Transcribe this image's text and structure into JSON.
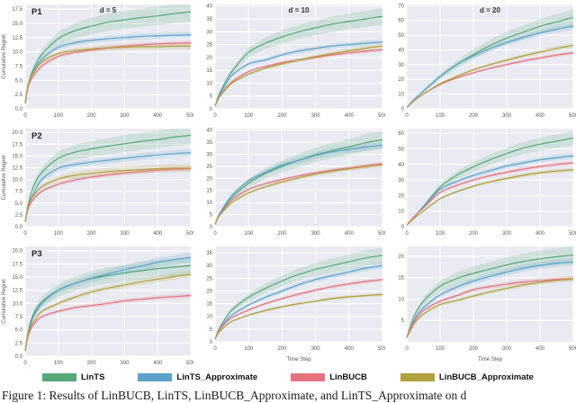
{
  "figure": {
    "caption": "Figure 1: Results of LinBUCB, LinTS, LinBUCB_Approximate, and LinTS_Approximate on d"
  },
  "style_colors": {
    "plot_background": "#eaebf2",
    "gridline": "#ffffff",
    "tick_text": "#555555",
    "title_text": "#333333"
  },
  "legend": {
    "items": [
      {
        "name": "lints",
        "label": "LinTS",
        "color": "#55a878"
      },
      {
        "name": "lints-approximate",
        "label": "LinTS_Approximate",
        "color": "#5ba2c9"
      },
      {
        "name": "linbucb",
        "label": "LinBUCB",
        "color": "#e5737f"
      },
      {
        "name": "linbucb-approximate",
        "label": "LinBUCB_Approximate",
        "color": "#b0a03e"
      }
    ]
  },
  "chart_data": [
    {
      "id": "p1-d5",
      "type": "line",
      "panel_label": "P1",
      "title": "d = 5",
      "ylabel": "Cumulative Regret",
      "x": [
        0,
        10,
        25,
        50,
        100,
        150,
        200,
        250,
        300,
        350,
        400,
        450,
        500
      ],
      "xticks": [
        0,
        100,
        200,
        300,
        400,
        500
      ],
      "xlim": [
        0,
        500
      ],
      "yticks": [
        0,
        2.5,
        5,
        7.5,
        10,
        12.5,
        15,
        17.5
      ],
      "ytick_decimals": 1,
      "ylim": [
        0,
        18.3
      ],
      "series": [
        {
          "name": "LinTS",
          "band_frac": 0.1,
          "values": [
            1,
            4.5,
            7,
            9.5,
            12.3,
            13.7,
            14.5,
            15.2,
            15.6,
            16,
            16.3,
            16.7,
            17
          ]
        },
        {
          "name": "LinTS_Approximate",
          "band_frac": 0.04,
          "values": [
            1,
            4.3,
            6.5,
            8.7,
            10.8,
            11.6,
            12,
            12.3,
            12.5,
            12.7,
            12.8,
            12.9,
            13
          ]
        },
        {
          "name": "LinBUCB",
          "band_frac": 0.035,
          "values": [
            1,
            4,
            5.8,
            7.5,
            9.2,
            9.9,
            10.3,
            10.7,
            11,
            11.2,
            11.4,
            11.5,
            11.6
          ]
        },
        {
          "name": "LinBUCB_Approximate",
          "band_frac": 0.045,
          "values": [
            1,
            4.4,
            6.3,
            8.2,
            9.7,
            10.2,
            10.5,
            10.7,
            10.8,
            10.9,
            10.9,
            11,
            11
          ]
        }
      ]
    },
    {
      "id": "p1-d10",
      "type": "line",
      "title": "d = 10",
      "x": [
        0,
        10,
        25,
        50,
        100,
        150,
        200,
        250,
        300,
        350,
        400,
        450,
        500
      ],
      "xticks": [
        0,
        100,
        200,
        300,
        400,
        500
      ],
      "xlim": [
        0,
        500
      ],
      "yticks": [
        0,
        5,
        10,
        15,
        20,
        25,
        30,
        35,
        40
      ],
      "ytick_decimals": 0,
      "ylim": [
        0,
        40.6
      ],
      "series": [
        {
          "name": "LinTS",
          "band_frac": 0.09,
          "values": [
            1,
            5,
            9,
            14.5,
            22,
            25.5,
            28,
            30,
            31.5,
            33,
            34,
            35,
            36
          ]
        },
        {
          "name": "LinTS_Approximate",
          "band_frac": 0.04,
          "values": [
            1,
            4.5,
            8,
            13,
            17.5,
            19,
            21,
            22.5,
            23.5,
            24.5,
            25,
            25.5,
            26
          ]
        },
        {
          "name": "LinBUCB",
          "band_frac": 0.035,
          "values": [
            1,
            4,
            7,
            10.5,
            14.5,
            16.5,
            18,
            19,
            20,
            21,
            21.8,
            22.4,
            23
          ]
        },
        {
          "name": "LinBUCB_Approximate",
          "band_frac": 0.04,
          "values": [
            1,
            4,
            6.5,
            10,
            13.5,
            15.8,
            17.5,
            19,
            20.3,
            21.5,
            22.6,
            23.6,
            24.5
          ]
        }
      ]
    },
    {
      "id": "p1-d20",
      "type": "line",
      "title": "d = 20",
      "x": [
        0,
        10,
        25,
        50,
        100,
        150,
        200,
        250,
        300,
        350,
        400,
        450,
        500
      ],
      "xticks": [
        0,
        100,
        200,
        300,
        400,
        500
      ],
      "xlim": [
        0,
        500
      ],
      "yticks": [
        0,
        10,
        20,
        30,
        40,
        50,
        60,
        70
      ],
      "ytick_decimals": 0,
      "ylim": [
        0,
        70.8
      ],
      "series": [
        {
          "name": "LinTS",
          "band_frac": 0.09,
          "values": [
            1,
            3.5,
            7,
            12,
            22,
            30,
            37,
            43,
            48,
            52,
            56,
            59,
            62
          ]
        },
        {
          "name": "LinTS_Approximate",
          "band_frac": 0.04,
          "values": [
            1,
            3.5,
            7,
            12,
            22,
            30,
            36,
            41,
            45,
            48.5,
            51.5,
            54,
            56
          ]
        },
        {
          "name": "LinBUCB",
          "band_frac": 0.035,
          "values": [
            1,
            3,
            6,
            10,
            16.5,
            21,
            24.5,
            27.5,
            30,
            32.5,
            34.5,
            36.5,
            38
          ]
        },
        {
          "name": "LinBUCB_Approximate",
          "band_frac": 0.04,
          "values": [
            1,
            3,
            6,
            10,
            17,
            22,
            26.5,
            30,
            33,
            36,
            38.5,
            41,
            43
          ]
        }
      ]
    },
    {
      "id": "p2-d5",
      "type": "line",
      "panel_label": "P2",
      "ylabel": "Cumulative Regret",
      "x": [
        0,
        10,
        25,
        50,
        100,
        150,
        200,
        250,
        300,
        350,
        400,
        450,
        500
      ],
      "xticks": [
        0,
        100,
        200,
        300,
        400,
        500
      ],
      "xlim": [
        0,
        500
      ],
      "yticks": [
        0,
        2.5,
        5,
        7.5,
        10,
        12.5,
        15,
        17.5,
        20
      ],
      "ytick_decimals": 1,
      "ylim": [
        0,
        20.8
      ],
      "series": [
        {
          "name": "LinTS",
          "band_frac": 0.1,
          "values": [
            1,
            5,
            8.5,
            11.5,
            14.5,
            15.8,
            16.5,
            17.1,
            17.6,
            18.1,
            18.5,
            19,
            19.4
          ]
        },
        {
          "name": "LinTS_Approximate",
          "band_frac": 0.05,
          "values": [
            1,
            4.5,
            7,
            10,
            12.4,
            13.2,
            13.7,
            14.1,
            14.5,
            14.9,
            15.2,
            15.5,
            15.7
          ]
        },
        {
          "name": "LinBUCB",
          "band_frac": 0.04,
          "values": [
            1,
            4,
            5.8,
            7.5,
            9,
            9.9,
            10.5,
            11,
            11.4,
            11.7,
            12,
            12.2,
            12.3
          ]
        },
        {
          "name": "LinBUCB_Approximate",
          "band_frac": 0.07,
          "values": [
            1,
            4.5,
            6.5,
            8.5,
            10.1,
            10.9,
            11.3,
            11.7,
            11.9,
            12.1,
            12.3,
            12.4,
            12.4
          ]
        }
      ]
    },
    {
      "id": "p2-d10",
      "type": "line",
      "x": [
        0,
        10,
        25,
        50,
        100,
        150,
        200,
        250,
        300,
        350,
        400,
        450,
        500
      ],
      "xticks": [
        0,
        100,
        200,
        300,
        400,
        500
      ],
      "xlim": [
        0,
        500
      ],
      "yticks": [
        0,
        5,
        10,
        15,
        20,
        25,
        30,
        35,
        40
      ],
      "ytick_decimals": 0,
      "ylim": [
        0,
        40.6
      ],
      "series": [
        {
          "name": "LinTS",
          "band_frac": 0.1,
          "values": [
            1,
            4,
            7.5,
            12,
            18,
            22,
            25,
            27.5,
            29.8,
            31.5,
            33,
            34.8,
            36
          ]
        },
        {
          "name": "LinTS_Approximate",
          "band_frac": 0.05,
          "values": [
            1,
            4.5,
            8,
            13,
            19,
            22.5,
            25.5,
            27.5,
            29.5,
            31,
            32,
            33,
            33.8
          ]
        },
        {
          "name": "LinBUCB",
          "band_frac": 0.035,
          "values": [
            1,
            4,
            7,
            11,
            15.5,
            17.8,
            19.5,
            21,
            22.3,
            23.4,
            24.3,
            25.2,
            26
          ]
        },
        {
          "name": "LinBUCB_Approximate",
          "band_frac": 0.04,
          "values": [
            1,
            4,
            6.5,
            10,
            14,
            16.5,
            18.5,
            20.2,
            21.7,
            23,
            24,
            24.9,
            25.6
          ]
        }
      ]
    },
    {
      "id": "p2-d20",
      "type": "line",
      "x": [
        0,
        10,
        25,
        50,
        100,
        150,
        200,
        250,
        300,
        350,
        400,
        450,
        500
      ],
      "xticks": [
        0,
        100,
        200,
        300,
        400,
        500
      ],
      "xlim": [
        0,
        500
      ],
      "yticks": [
        0,
        10,
        20,
        30,
        40,
        50,
        60
      ],
      "ytick_decimals": 0,
      "ylim": [
        0,
        63
      ],
      "series": [
        {
          "name": "LinTS",
          "band_frac": 0.08,
          "values": [
            1,
            3.5,
            7,
            13,
            25.5,
            33,
            38.5,
            43,
            47,
            50.5,
            53,
            55,
            57
          ]
        },
        {
          "name": "LinTS_Approximate",
          "band_frac": 0.04,
          "values": [
            1,
            3.5,
            7,
            12.5,
            24,
            29,
            33,
            36,
            39,
            41,
            43,
            44.3,
            45.5
          ]
        },
        {
          "name": "LinBUCB",
          "band_frac": 0.035,
          "values": [
            1,
            3.5,
            7,
            12,
            22,
            26.5,
            30,
            32.8,
            35,
            37,
            38.7,
            40,
            41
          ]
        },
        {
          "name": "LinBUCB_Approximate",
          "band_frac": 0.04,
          "values": [
            1,
            3,
            6,
            10,
            18,
            22.5,
            26,
            28.8,
            31,
            33,
            34.7,
            35.8,
            36.5
          ]
        }
      ]
    },
    {
      "id": "p3-d5",
      "type": "line",
      "panel_label": "P3",
      "ylabel": "Cumulative Regret",
      "x": [
        0,
        10,
        25,
        50,
        100,
        150,
        200,
        250,
        300,
        350,
        400,
        450,
        500
      ],
      "xticks": [
        0,
        100,
        200,
        300,
        400,
        500
      ],
      "xlim": [
        0,
        500
      ],
      "yticks": [
        0,
        2.5,
        5,
        7.5,
        10,
        12.5,
        15,
        17.5,
        20
      ],
      "ytick_decimals": 1,
      "ylim": [
        0,
        20.8
      ],
      "series": [
        {
          "name": "LinTS",
          "band_frac": 0.1,
          "values": [
            1,
            5,
            8,
            10.3,
            12.5,
            13.8,
            14.7,
            15.3,
            15.8,
            16.2,
            16.6,
            16.9,
            17.2
          ]
        },
        {
          "name": "LinTS_Approximate",
          "band_frac": 0.05,
          "values": [
            1,
            4.5,
            7.5,
            10,
            12.5,
            13.8,
            14.8,
            15.6,
            16.4,
            17.1,
            17.8,
            18.3,
            18.7
          ]
        },
        {
          "name": "LinBUCB",
          "band_frac": 0.04,
          "values": [
            1,
            4,
            6,
            7.5,
            8.5,
            9.2,
            9.6,
            10,
            10.5,
            10.8,
            11.1,
            11.3,
            11.5
          ]
        },
        {
          "name": "LinBUCB_Approximate",
          "band_frac": 0.04,
          "values": [
            1,
            4.5,
            6.5,
            8.5,
            10,
            11.2,
            12.2,
            12.9,
            13.5,
            14.1,
            14.6,
            15.1,
            15.5
          ]
        }
      ]
    },
    {
      "id": "p3-d10",
      "type": "line",
      "xlabel": "Time Step",
      "x": [
        0,
        10,
        25,
        50,
        100,
        150,
        200,
        250,
        300,
        350,
        400,
        450,
        500
      ],
      "xticks": [
        0,
        100,
        200,
        300,
        400,
        500
      ],
      "xlim": [
        0,
        500
      ],
      "yticks": [
        0,
        5,
        10,
        15,
        20,
        25,
        30,
        35
      ],
      "ytick_decimals": 0,
      "ylim": [
        0,
        37.5
      ],
      "series": [
        {
          "name": "LinTS",
          "band_frac": 0.09,
          "values": [
            1,
            4.5,
            8,
            12.5,
            17.5,
            21,
            24,
            26.5,
            28.5,
            30,
            31.5,
            33,
            34
          ]
        },
        {
          "name": "LinTS_Approximate",
          "band_frac": 0.04,
          "values": [
            1,
            4,
            7,
            10.5,
            14.5,
            17.5,
            20,
            22.5,
            24.5,
            26,
            27.5,
            29,
            30
          ]
        },
        {
          "name": "LinBUCB",
          "band_frac": 0.035,
          "values": [
            1,
            4,
            6.5,
            9.5,
            12.5,
            15,
            17,
            18.8,
            20.3,
            21.7,
            22.8,
            23.7,
            24.5
          ]
        },
        {
          "name": "LinBUCB_Approximate",
          "band_frac": 0.04,
          "values": [
            1,
            3.5,
            5.5,
            8,
            10.5,
            12.3,
            13.8,
            15,
            16,
            17,
            17.7,
            18.2,
            18.6
          ]
        }
      ]
    },
    {
      "id": "p3-d20",
      "type": "line",
      "xlabel": "Time Step",
      "x": [
        0,
        10,
        25,
        50,
        100,
        150,
        200,
        250,
        300,
        350,
        400,
        450,
        500
      ],
      "xticks": [
        0,
        100,
        200,
        300,
        400,
        500
      ],
      "xlim": [
        0,
        500
      ],
      "yticks": [
        5,
        10,
        15,
        20
      ],
      "ytick_decimals": 0,
      "ylim": [
        0,
        22.3
      ],
      "series": [
        {
          "name": "LinTS",
          "band_frac": 0.1,
          "values": [
            1,
            3.5,
            6.5,
            9.5,
            13,
            14.8,
            16,
            17,
            18,
            18.8,
            19.4,
            19.9,
            20.3
          ]
        },
        {
          "name": "LinTS_Approximate",
          "band_frac": 0.05,
          "values": [
            1,
            3,
            5.5,
            8,
            11,
            12.8,
            14.2,
            15.3,
            16.3,
            17.2,
            17.9,
            18.4,
            18.7
          ]
        },
        {
          "name": "LinBUCB",
          "band_frac": 0.04,
          "values": [
            1,
            3,
            5,
            7.3,
            9.5,
            10.8,
            12.2,
            12.9,
            13.5,
            14,
            14.3,
            14.6,
            14.8
          ]
        },
        {
          "name": "LinBUCB_Approximate",
          "band_frac": 0.04,
          "values": [
            1,
            2.5,
            4.5,
            6.5,
            8.7,
            9.7,
            10.7,
            11.7,
            12.5,
            13.3,
            13.9,
            14.4,
            14.7
          ]
        }
      ]
    }
  ],
  "chart_xlabel_row3_left": "Time Step"
}
